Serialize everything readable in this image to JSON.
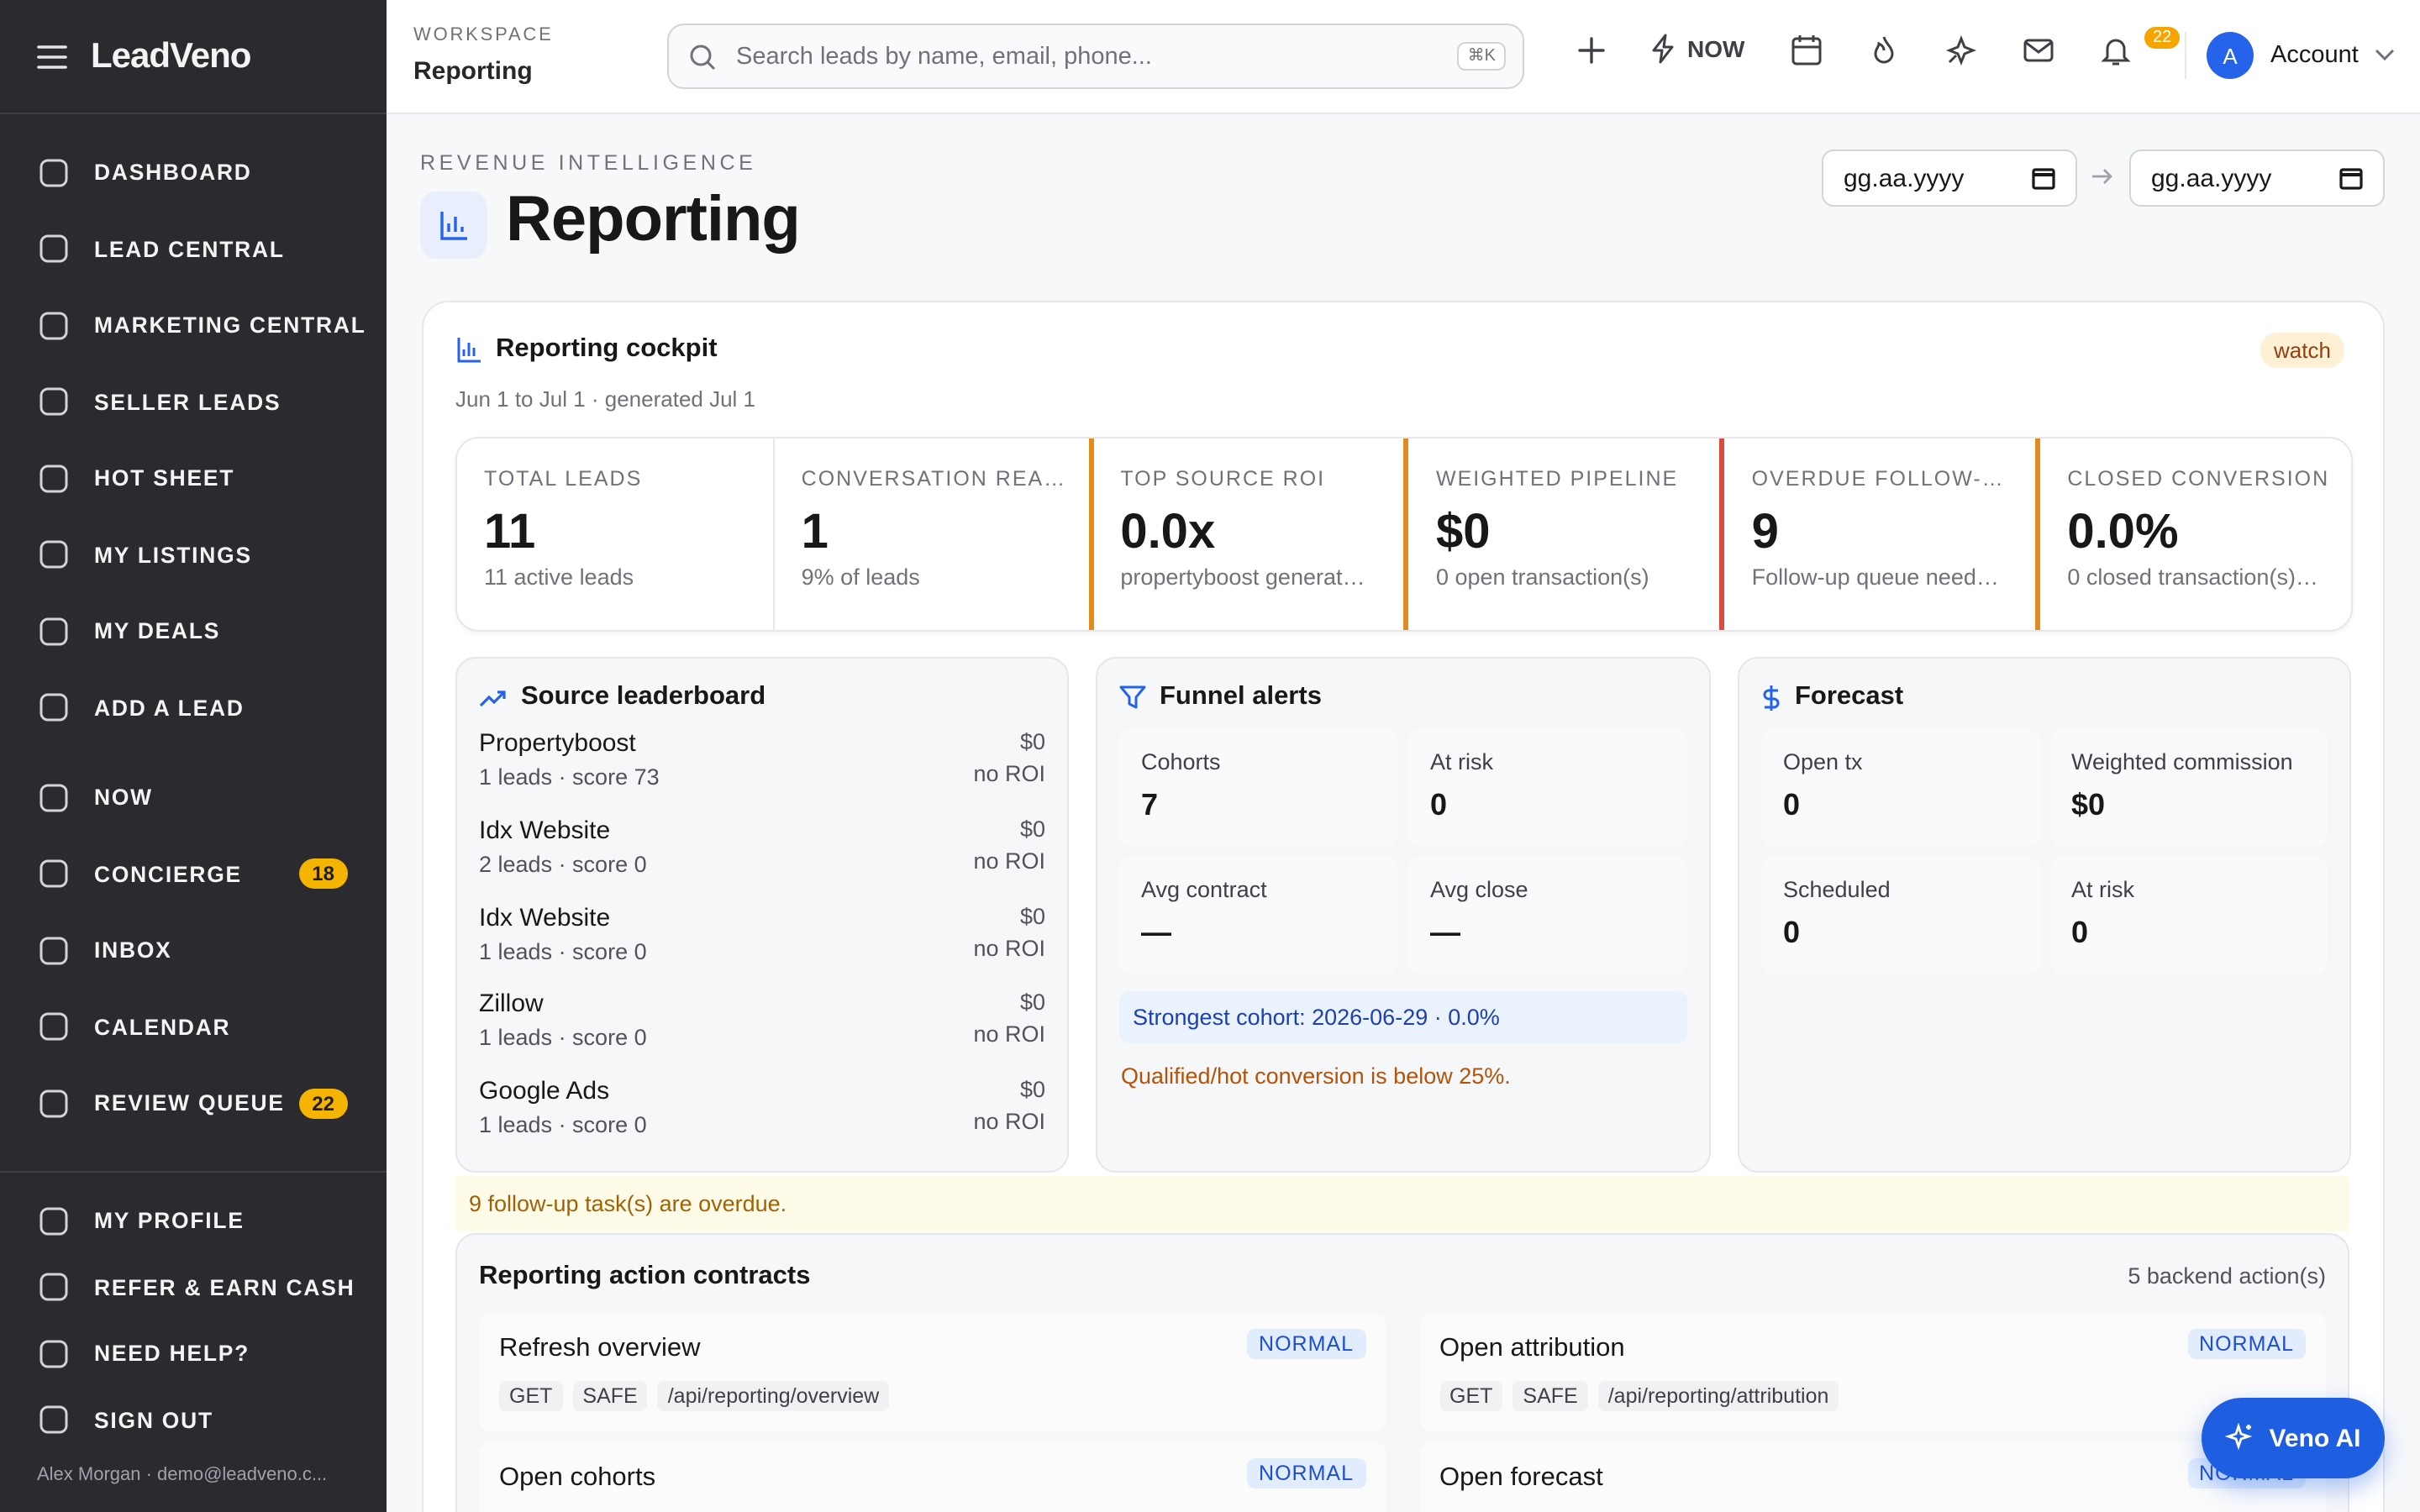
{
  "sidebar": {
    "brand": "LeadVeno",
    "nav": [
      {
        "label": "DASHBOARD"
      },
      {
        "label": "LEAD CENTRAL"
      },
      {
        "label": "MARKETING CENTRAL"
      },
      {
        "label": "SELLER LEADS"
      },
      {
        "label": "HOT SHEET"
      },
      {
        "label": "MY LISTINGS"
      },
      {
        "label": "MY DEALS"
      },
      {
        "label": "ADD A LEAD"
      }
    ],
    "nav2": [
      {
        "label": "NOW"
      },
      {
        "label": "CONCIERGE",
        "badge": 18
      },
      {
        "label": "INBOX"
      },
      {
        "label": "CALENDAR"
      },
      {
        "label": "REVIEW QUEUE",
        "badge": 22
      }
    ],
    "footer_nav": [
      {
        "label": "MY PROFILE"
      },
      {
        "label": "REFER & EARN CASH"
      },
      {
        "label": "NEED HELP?"
      },
      {
        "label": "SIGN OUT"
      }
    ],
    "user": "Alex Morgan · demo@leadveno.c..."
  },
  "header": {
    "workspace_label": "WORKSPACE",
    "workspace": "Reporting",
    "search_placeholder": "Search leads by name, email, phone...",
    "shortcut": "⌘K",
    "now": "NOW",
    "notification_badge": 22,
    "avatar": "A",
    "account": "Account"
  },
  "page": {
    "eyebrow": "REVENUE INTELLIGENCE",
    "title": "Reporting",
    "date_from": "gg.aa.yyyy",
    "date_to": "gg.aa.yyyy"
  },
  "cockpit": {
    "title": "Reporting cockpit",
    "status": "watch",
    "subtitle": "Jun 1 to Jul 1 · generated Jul 1",
    "kpis": [
      {
        "label": "TOTAL LEADS",
        "value": 11,
        "note": "11 active leads"
      },
      {
        "label": "CONVERSATION REA…",
        "value": 1,
        "note": "9% of leads"
      },
      {
        "label": "TOP SOURCE ROI",
        "value": "0.0x",
        "note": "propertyboost generat…",
        "accent": "#e38b1f"
      },
      {
        "label": "WEIGHTED PIPELINE",
        "value": "$0",
        "note": "0 open transaction(s)",
        "accent": "#e38b1f"
      },
      {
        "label": "OVERDUE FOLLOW-…",
        "value": 9,
        "note": "Follow-up queue need…",
        "accent": "#dc4b3e"
      },
      {
        "label": "CLOSED CONVERSION",
        "value": "0.0%",
        "note": "0 closed transaction(s)…",
        "accent": "#e38b1f"
      }
    ]
  },
  "leaderboard": {
    "title": "Source leaderboard",
    "rows": [
      {
        "name": "Propertyboost",
        "detail": "1 leads · score 73",
        "amount": "$0",
        "roi": "no ROI"
      },
      {
        "name": "Idx Website",
        "detail": "2 leads · score 0",
        "amount": "$0",
        "roi": "no ROI"
      },
      {
        "name": "Idx Website",
        "detail": "1 leads · score 0",
        "amount": "$0",
        "roi": "no ROI"
      },
      {
        "name": "Zillow",
        "detail": "1 leads · score 0",
        "amount": "$0",
        "roi": "no ROI"
      },
      {
        "name": "Google Ads",
        "detail": "1 leads · score 0",
        "amount": "$0",
        "roi": "no ROI"
      }
    ]
  },
  "funnel": {
    "title": "Funnel alerts",
    "stats": [
      {
        "label": "Cohorts",
        "value": 7
      },
      {
        "label": "At risk",
        "value": 0
      },
      {
        "label": "Avg contract",
        "value": "—"
      },
      {
        "label": "Avg close",
        "value": "—"
      }
    ],
    "info": "Strongest cohort: 2026-06-29 · 0.0%",
    "warning": "Qualified/hot conversion is below 25%."
  },
  "forecast": {
    "title": "Forecast",
    "stats": [
      {
        "label": "Open tx",
        "value": 0
      },
      {
        "label": "Weighted commission",
        "value": "$0"
      },
      {
        "label": "Scheduled",
        "value": 0
      },
      {
        "label": "At risk",
        "value": 0
      }
    ]
  },
  "overdue_banner": "9 follow-up task(s) are overdue.",
  "contracts": {
    "title": "Reporting action contracts",
    "count": "5 backend action(s)",
    "items": [
      {
        "name": "Refresh overview",
        "priority": "NORMAL",
        "method": "GET",
        "safety": "SAFE",
        "path": "/api/reporting/overview"
      },
      {
        "name": "Open attribution",
        "priority": "NORMAL",
        "method": "GET",
        "safety": "SAFE",
        "path": "/api/reporting/attribution"
      },
      {
        "name": "Open cohorts",
        "priority": "NORMAL"
      },
      {
        "name": "Open forecast",
        "priority": "NORMAL"
      }
    ]
  },
  "assistant": "Veno AI"
}
